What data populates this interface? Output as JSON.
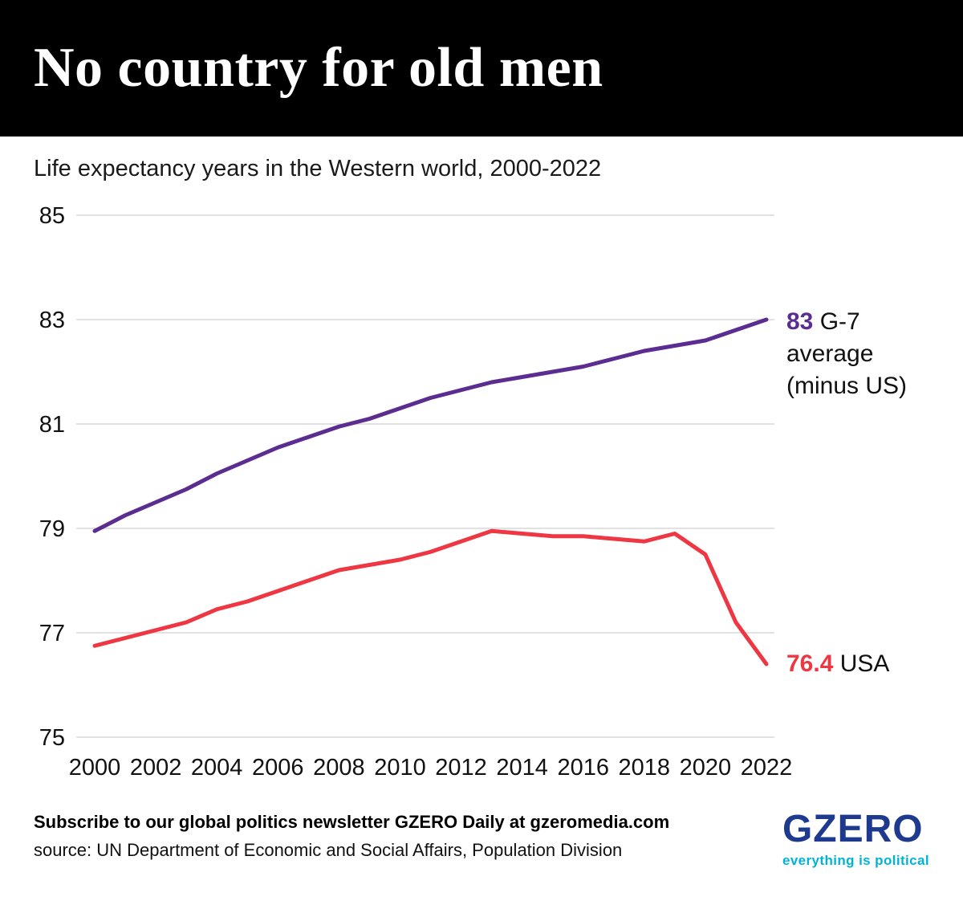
{
  "header": {
    "title": "No country for old men"
  },
  "subtitle": "Life expectancy years in the Western world, 2000-2022",
  "chart_data": {
    "type": "line",
    "title": "Life expectancy years in the Western world, 2000-2022",
    "x": [
      2000,
      2001,
      2002,
      2003,
      2004,
      2005,
      2006,
      2007,
      2008,
      2009,
      2010,
      2011,
      2012,
      2013,
      2014,
      2015,
      2016,
      2017,
      2018,
      2019,
      2020,
      2021,
      2022
    ],
    "series": [
      {
        "name": "G-7 average (minus US)",
        "color": "#5b2d91",
        "values": [
          78.95,
          79.25,
          79.5,
          79.75,
          80.05,
          80.3,
          80.55,
          80.75,
          80.95,
          81.1,
          81.3,
          81.5,
          81.65,
          81.8,
          81.9,
          82.0,
          82.1,
          82.25,
          82.4,
          82.5,
          82.6,
          82.8,
          83.0
        ]
      },
      {
        "name": "USA",
        "color": "#ee3742",
        "values": [
          76.75,
          76.9,
          77.05,
          77.2,
          77.45,
          77.6,
          77.8,
          78.0,
          78.2,
          78.3,
          78.4,
          78.55,
          78.75,
          78.95,
          78.9,
          78.85,
          78.85,
          78.8,
          78.75,
          78.9,
          78.5,
          77.2,
          76.4
        ]
      }
    ],
    "ylim": [
      75,
      85
    ],
    "yticks": [
      75,
      77,
      79,
      81,
      83,
      85
    ],
    "xticks": [
      2000,
      2002,
      2004,
      2006,
      2008,
      2010,
      2012,
      2014,
      2016,
      2018,
      2020,
      2022
    ],
    "grid": true,
    "legend_position": "right-of-line-ends",
    "annotations": [
      {
        "value_label": "83",
        "text": "G-7 average (minus US)",
        "color": "#5b2d91"
      },
      {
        "value_label": "76.4",
        "text": "USA",
        "color": "#ee3742"
      }
    ]
  },
  "labels": {
    "g7": {
      "value": "83",
      "rest": " G-7 average (minus US)"
    },
    "usa": {
      "value": "76.4",
      "rest": " USA"
    }
  },
  "footer": {
    "subscribe": "Subscribe to our global politics newsletter GZERO Daily at gzeromedia.com",
    "source": "source: UN Department of Economic and Social Affairs, Population Division",
    "logo": "GZERO",
    "tagline": "everything is political"
  },
  "colors": {
    "g7_line": "#5b2d91",
    "usa_line": "#ee3742",
    "gridline": "#d8d8d8",
    "band_background": "#000000",
    "logo_navy": "#1e3a8f",
    "tagline_cyan": "#00b4d8"
  }
}
